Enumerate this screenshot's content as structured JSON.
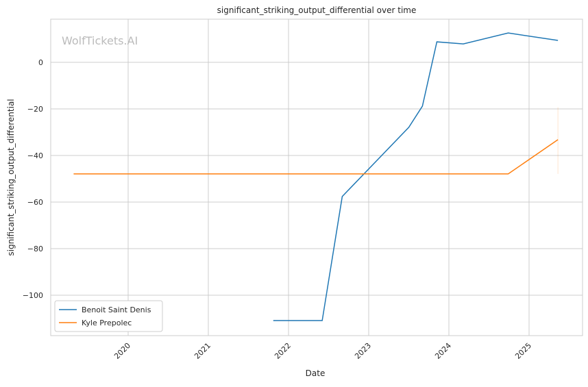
{
  "chart_data": {
    "type": "line",
    "title": "significant_striking_output_differential over time",
    "xlabel": "Date",
    "ylabel": "significant_striking_output_differential",
    "watermark": "WolfTickets.AI",
    "xlim": [
      2019.1,
      2025.7
    ],
    "ylim": [
      -117,
      18
    ],
    "xticks": [
      2020,
      2021,
      2022,
      2023,
      2024,
      2025
    ],
    "yticks": [
      0,
      -20,
      -40,
      -60,
      -80,
      -100
    ],
    "grid": true,
    "legend_position": "bottom-left",
    "series": [
      {
        "name": "Benoit Saint Denis",
        "color": "#1f77b4",
        "x": [
          2021.81,
          2022.42,
          2022.67,
          2023.5,
          2023.67,
          2023.85,
          2024.18,
          2024.74,
          2025.36
        ],
        "y": [
          -110.9,
          -110.9,
          -57.6,
          -27.9,
          -18.8,
          8.8,
          7.9,
          12.6,
          9.4
        ]
      },
      {
        "name": "Kyle Prepolec",
        "color": "#ff7f0e",
        "x": [
          2019.32,
          2024.74,
          2025.36
        ],
        "y": [
          -47.9,
          -47.9,
          -33.2
        ],
        "band": {
          "x": 2025.36,
          "low": -47.9,
          "high": -19.3
        }
      }
    ]
  }
}
